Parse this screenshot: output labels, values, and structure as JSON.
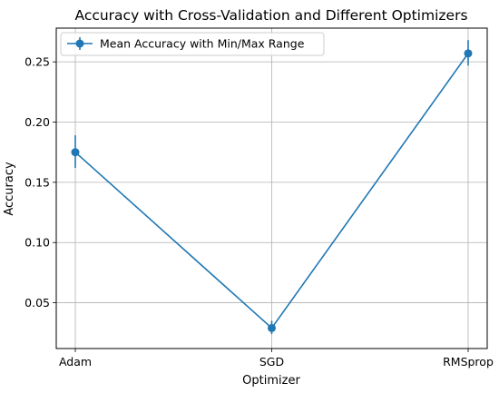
{
  "chart_data": {
    "type": "line",
    "title": "Accuracy with Cross-Validation and Different Optimizers",
    "xlabel": "Optimizer",
    "ylabel": "Accuracy",
    "categories": [
      "Adam",
      "SGD",
      "RMSprop"
    ],
    "series": [
      {
        "name": "Mean Accuracy with Min/Max Range",
        "values": [
          0.175,
          0.029,
          0.257
        ],
        "min": [
          0.162,
          0.024,
          0.247
        ],
        "max": [
          0.189,
          0.035,
          0.268
        ],
        "color": "#1f77b4"
      }
    ],
    "yticks": [
      "0.05",
      "0.10",
      "0.15",
      "0.20",
      "0.25"
    ],
    "ylim": [
      0.012,
      0.278
    ],
    "grid": true,
    "legend_position": "top-left"
  }
}
